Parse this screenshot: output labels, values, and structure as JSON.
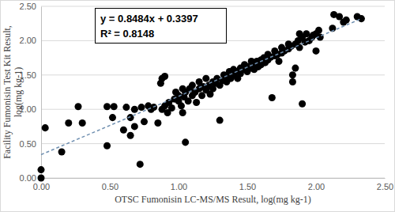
{
  "chart_data": {
    "type": "scatter",
    "xlabel": "OTSC Fumonisin LC-MS/MS Result, log(mg kg-1)",
    "ylabel": [
      "Facility  Fumonisin Test Kit Result,",
      "log(mg kg-1)"
    ],
    "annotations": [
      "y = 0.8484x + 0.3397",
      "R² = 0.8148"
    ],
    "xlim": [
      0,
      2.5
    ],
    "ylim": [
      0,
      2.5
    ],
    "xticks": [
      {
        "value": 0,
        "label": "0.00"
      },
      {
        "value": 0.5,
        "label": "0.50"
      },
      {
        "value": 1,
        "label": "1.00"
      },
      {
        "value": 1.5,
        "label": "1.50"
      },
      {
        "value": 2,
        "label": "2.00"
      },
      {
        "value": 2.5,
        "label": "2.50"
      }
    ],
    "yticks": [
      {
        "value": 0,
        "label": "0.00"
      },
      {
        "value": 0.5,
        "label": "0.50"
      },
      {
        "value": 1,
        "label": "1.00"
      },
      {
        "value": 1.5,
        "label": "1.50"
      },
      {
        "value": 2,
        "label": "2.00"
      },
      {
        "value": 2.5,
        "label": "2.50"
      }
    ],
    "grid": true,
    "series": [
      {
        "type": "scatter",
        "marker": "circle",
        "color": "#000000",
        "x": [
          0.0,
          0.0,
          0.03,
          0.15,
          0.2,
          0.27,
          0.3,
          0.48,
          0.48,
          0.52,
          0.53,
          0.6,
          0.62,
          0.65,
          0.65,
          0.68,
          0.68,
          0.72,
          0.73,
          0.75,
          0.78,
          0.8,
          0.82,
          0.85,
          0.87,
          0.88,
          0.88,
          0.9,
          0.9,
          0.92,
          0.93,
          0.95,
          0.97,
          0.98,
          1.0,
          1.0,
          1.02,
          1.03,
          1.03,
          1.04,
          1.05,
          1.05,
          1.07,
          1.08,
          1.1,
          1.1,
          1.12,
          1.13,
          1.15,
          1.15,
          1.17,
          1.18,
          1.2,
          1.2,
          1.22,
          1.23,
          1.25,
          1.25,
          1.27,
          1.28,
          1.3,
          1.3,
          1.32,
          1.33,
          1.35,
          1.35,
          1.37,
          1.38,
          1.4,
          1.4,
          1.42,
          1.43,
          1.45,
          1.45,
          1.47,
          1.48,
          1.5,
          1.5,
          1.52,
          1.53,
          1.55,
          1.55,
          1.57,
          1.58,
          1.6,
          1.6,
          1.62,
          1.63,
          1.65,
          1.65,
          1.67,
          1.68,
          1.7,
          1.7,
          1.72,
          1.73,
          1.75,
          1.75,
          1.77,
          1.8,
          1.8,
          1.82,
          1.83,
          1.83,
          1.85,
          1.85,
          1.87,
          1.88,
          1.88,
          1.9,
          1.9,
          1.92,
          1.93,
          1.95,
          1.97,
          1.98,
          2.0,
          2.0,
          2.02,
          2.03,
          2.12,
          2.13,
          2.17,
          2.2,
          2.22,
          2.3,
          2.33
        ],
        "values": [
          0.0,
          0.12,
          0.73,
          0.38,
          0.8,
          1.04,
          0.8,
          1.04,
          0.47,
          0.88,
          1.04,
          0.7,
          1.03,
          0.62,
          0.88,
          1.0,
          0.75,
          0.2,
          1.03,
          0.82,
          1.05,
          1.0,
          1.03,
          0.8,
          1.38,
          1.45,
          1.0,
          1.48,
          1.05,
          0.95,
          1.1,
          1.02,
          1.15,
          1.25,
          1.12,
          1.2,
          1.05,
          1.3,
          0.95,
          1.18,
          0.52,
          1.25,
          1.12,
          1.3,
          1.2,
          1.35,
          1.25,
          1.1,
          1.3,
          1.4,
          1.2,
          1.33,
          1.28,
          1.45,
          1.35,
          1.22,
          1.4,
          1.3,
          1.38,
          1.45,
          1.35,
          0.84,
          1.42,
          1.5,
          1.4,
          1.48,
          1.55,
          1.45,
          1.5,
          1.58,
          1.55,
          1.45,
          1.6,
          1.52,
          1.58,
          1.65,
          1.55,
          1.62,
          1.6,
          1.7,
          1.65,
          1.58,
          1.7,
          1.62,
          1.72,
          1.65,
          1.75,
          1.68,
          1.72,
          1.8,
          1.76,
          1.17,
          1.78,
          1.85,
          1.8,
          1.7,
          1.82,
          1.9,
          1.85,
          1.88,
          1.95,
          1.92,
          1.4,
          1.5,
          1.95,
          1.6,
          2.0,
          1.9,
          2.1,
          1.08,
          2.05,
          1.98,
          2.1,
          2.0,
          2.05,
          2.08,
          1.85,
          2.1,
          2.15,
          2.05,
          2.18,
          2.38,
          2.35,
          2.27,
          2.3,
          2.35,
          2.32
        ]
      },
      {
        "type": "line",
        "line_style": "dashed",
        "color": "#6f8fb0",
        "x": [
          0.0,
          2.33
        ],
        "values": [
          0.34,
          2.32
        ]
      }
    ]
  }
}
